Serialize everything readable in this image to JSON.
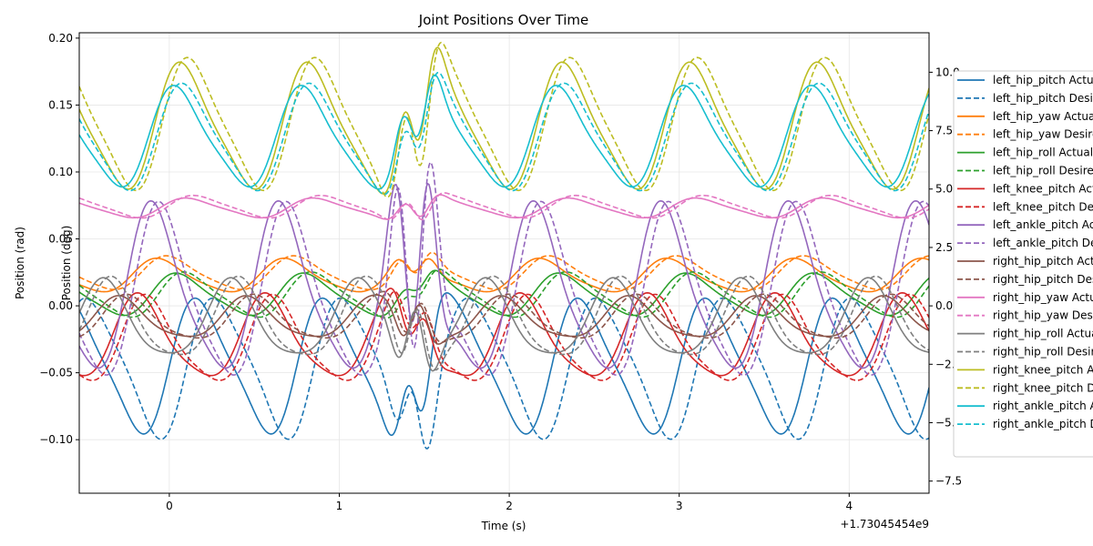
{
  "chart_data": {
    "type": "line",
    "title": "Joint Positions Over Time",
    "xlabel": "Time (s)",
    "ylabel": "Position (rad)",
    "ylabel_right": "Position (deg)",
    "x_offset_label": "+1.73045454e9",
    "xlim": [
      -0.53,
      4.47
    ],
    "ylim": [
      -0.14,
      0.204
    ],
    "ylim_right": [
      -8.02,
      11.69
    ],
    "x_ticks": [
      0,
      1,
      2,
      3,
      4
    ],
    "x_tick_labels": [
      "0",
      "1",
      "2",
      "3",
      "4"
    ],
    "y_ticks": [
      -0.1,
      -0.05,
      0.0,
      0.05,
      0.1,
      0.15,
      0.2
    ],
    "y_tick_labels": [
      "−0.10",
      "−0.05",
      "0.00",
      "0.05",
      "0.10",
      "0.15",
      "0.20"
    ],
    "y_right_ticks": [
      -7.5,
      -5.0,
      -2.5,
      0.0,
      2.5,
      5.0,
      7.5,
      10.0
    ],
    "y_right_tick_labels": [
      "−7.5",
      "−5.0",
      "−2.5",
      "0.0",
      "2.5",
      "5.0",
      "7.5",
      "10.0"
    ],
    "grid": true,
    "legend_position": "right-outside",
    "time_start": -0.53,
    "time_end": 4.47,
    "period": 0.75,
    "disturbance": {
      "center": 1.45,
      "width": 0.13
    },
    "series": [
      {
        "name": "left_hip_pitch Actual",
        "color": "#1f77b4",
        "dash": false,
        "mean": -0.045,
        "amp": 0.048,
        "phase": 0.0,
        "dist": 0.035
      },
      {
        "name": "left_hip_pitch Desired",
        "color": "#1f77b4",
        "dash": true,
        "mean": -0.045,
        "amp": 0.05,
        "phase": -0.9,
        "dist": 0.035
      },
      {
        "name": "left_hip_yaw Actual",
        "color": "#ff7f0e",
        "dash": false,
        "mean": 0.022,
        "amp": 0.012,
        "phase": 2.0,
        "dist": 0.01
      },
      {
        "name": "left_hip_yaw Desired",
        "color": "#ff7f0e",
        "dash": true,
        "mean": 0.024,
        "amp": 0.012,
        "phase": 1.5,
        "dist": 0.012
      },
      {
        "name": "left_hip_roll Actual",
        "color": "#2ca02c",
        "dash": false,
        "mean": 0.008,
        "amp": 0.015,
        "phase": 1.0,
        "dist": 0.008
      },
      {
        "name": "left_hip_roll Desired",
        "color": "#2ca02c",
        "dash": true,
        "mean": 0.008,
        "amp": 0.016,
        "phase": 0.6,
        "dist": 0.008
      },
      {
        "name": "left_knee_pitch Actual",
        "color": "#d62728",
        "dash": false,
        "mean": -0.025,
        "amp": 0.03,
        "phase": 3.0,
        "dist": 0.02
      },
      {
        "name": "left_knee_pitch Desired",
        "color": "#d62728",
        "dash": true,
        "mean": -0.027,
        "amp": 0.031,
        "phase": 2.6,
        "dist": 0.02
      },
      {
        "name": "left_ankle_pitch Actual",
        "color": "#9467bd",
        "dash": false,
        "mean": 0.01,
        "amp": 0.06,
        "phase": 2.3,
        "dist": 0.09
      },
      {
        "name": "left_ankle_pitch Desired",
        "color": "#9467bd",
        "dash": true,
        "mean": 0.008,
        "amp": 0.062,
        "phase": 1.9,
        "dist": 0.11
      },
      {
        "name": "right_hip_pitch Actual",
        "color": "#8c564b",
        "dash": false,
        "mean": -0.01,
        "amp": 0.015,
        "phase": 4.0,
        "dist": 0.02
      },
      {
        "name": "right_hip_pitch Desired",
        "color": "#8c564b",
        "dash": true,
        "mean": -0.01,
        "amp": 0.016,
        "phase": 3.6,
        "dist": 0.02
      },
      {
        "name": "right_hip_yaw Actual",
        "color": "#e377c2",
        "dash": false,
        "mean": 0.073,
        "amp": 0.007,
        "phase": 0.5,
        "dist": 0.01
      },
      {
        "name": "right_hip_yaw Desired",
        "color": "#e377c2",
        "dash": true,
        "mean": 0.074,
        "amp": 0.008,
        "phase": 0.1,
        "dist": 0.012
      },
      {
        "name": "right_hip_roll Actual",
        "color": "#7f7f7f",
        "dash": false,
        "mean": -0.012,
        "amp": 0.028,
        "phase": 4.8,
        "dist": 0.03
      },
      {
        "name": "right_hip_roll Desired",
        "color": "#7f7f7f",
        "dash": true,
        "mean": -0.012,
        "amp": 0.029,
        "phase": 4.4,
        "dist": 0.03
      },
      {
        "name": "right_knee_pitch Actual",
        "color": "#bcbd22",
        "dash": false,
        "mean": 0.133,
        "amp": 0.045,
        "phase": 0.8,
        "dist": 0.04
      },
      {
        "name": "right_knee_pitch Desired",
        "color": "#bcbd22",
        "dash": true,
        "mean": 0.135,
        "amp": 0.047,
        "phase": 0.4,
        "dist": 0.05
      },
      {
        "name": "right_ankle_pitch Actual",
        "color": "#17becf",
        "dash": false,
        "mean": 0.125,
        "amp": 0.036,
        "phase": 1.1,
        "dist": 0.03
      },
      {
        "name": "right_ankle_pitch Desired",
        "color": "#17becf",
        "dash": true,
        "mean": 0.125,
        "amp": 0.038,
        "phase": 0.7,
        "dist": 0.03
      }
    ]
  }
}
